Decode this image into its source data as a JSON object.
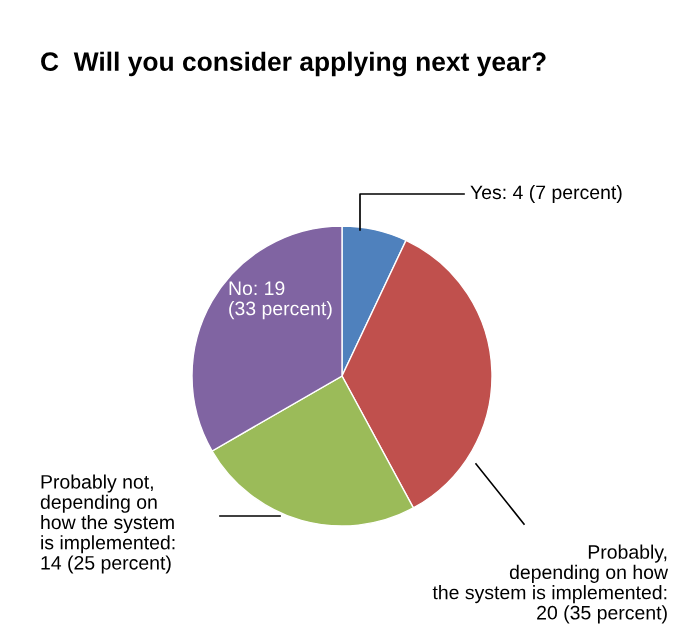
{
  "chart_data": {
    "type": "pie",
    "title": "C  Will you consider applying next year?",
    "categories": [
      "Yes: 4 (7 percent)",
      "Probably,\ndepending on how\nthe system is implemented:\n20 (35 percent)",
      "Probably not,\ndepending on\nhow the system\nis implemented:\n14 (25 percent)",
      "No: 19\n(33 percent)"
    ],
    "values": [
      4,
      20,
      14,
      19
    ],
    "colors": [
      "#4f81bd",
      "#c0504d",
      "#9bbb59",
      "#8064a2"
    ],
    "legend": false
  }
}
